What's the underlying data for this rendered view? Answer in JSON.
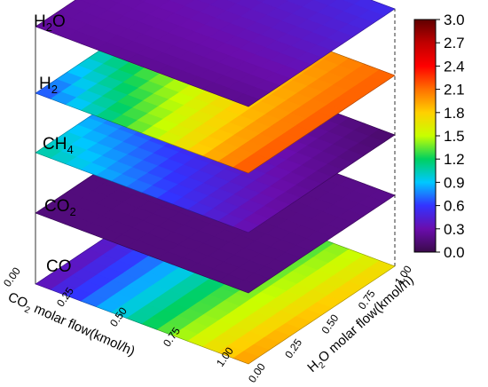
{
  "chart_data": {
    "type": "surface3d",
    "layers": [
      {
        "name": "H2O",
        "label_main": "H",
        "label_sub": "2",
        "label_tail": "O",
        "corner_values": {
          "x0_y0": 0.25,
          "x1_y0": 0.2,
          "x0_y1": 0.3,
          "x1_y1": 0.55
        }
      },
      {
        "name": "H2",
        "label_main": "H",
        "label_sub": "2",
        "label_tail": "",
        "corner_values": {
          "x0_y0": 0.6,
          "x1_y0": 2.2,
          "x0_y1": 1.6,
          "x1_y1": 2.15
        }
      },
      {
        "name": "CH4",
        "label_main": "CH",
        "label_sub": "4",
        "label_tail": "",
        "corner_values": {
          "x0_y0": 1.1,
          "x1_y0": 0.3,
          "x0_y1": 0.4,
          "x1_y1": 0.1
        }
      },
      {
        "name": "CO2",
        "label_main": "CO",
        "label_sub": "2",
        "label_tail": "",
        "corner_values": {
          "x0_y0": 0.15,
          "x1_y0": 0.15,
          "x0_y1": 0.15,
          "x1_y1": 0.2
        }
      },
      {
        "name": "CO",
        "label_main": "CO",
        "label_sub": "",
        "label_tail": "",
        "corner_values": {
          "x0_y0": 0.3,
          "x1_y0": 2.0,
          "x0_y1": 0.4,
          "x1_y1": 1.75
        }
      }
    ],
    "x_axis": {
      "label_main": "CO",
      "label_sub": "2",
      "label_tail": " molar flow(kmol/h)",
      "ticks": [
        "0.00",
        "0.25",
        "0.50",
        "0.75",
        "1.00"
      ],
      "range": [
        0,
        1
      ]
    },
    "y_axis": {
      "label_main": "H",
      "label_sub": "2",
      "label_tail": "O molar flow(kmol/h)",
      "ticks": [
        "0.00",
        "0.25",
        "0.50",
        "0.75",
        "1.00"
      ],
      "range": [
        0,
        1
      ]
    },
    "colorbar": {
      "ticks": [
        "3.0",
        "2.7",
        "2.4",
        "2.1",
        "1.8",
        "1.5",
        "1.2",
        "0.9",
        "0.6",
        "0.3",
        "0.0"
      ],
      "range": [
        0,
        3
      ],
      "colormap": [
        "#3a0a4a",
        "#6a0dad",
        "#3333ff",
        "#00c8ff",
        "#00d060",
        "#c8ff00",
        "#ffd000",
        "#ff7000",
        "#ff0000",
        "#c00000",
        "#600000"
      ]
    }
  }
}
